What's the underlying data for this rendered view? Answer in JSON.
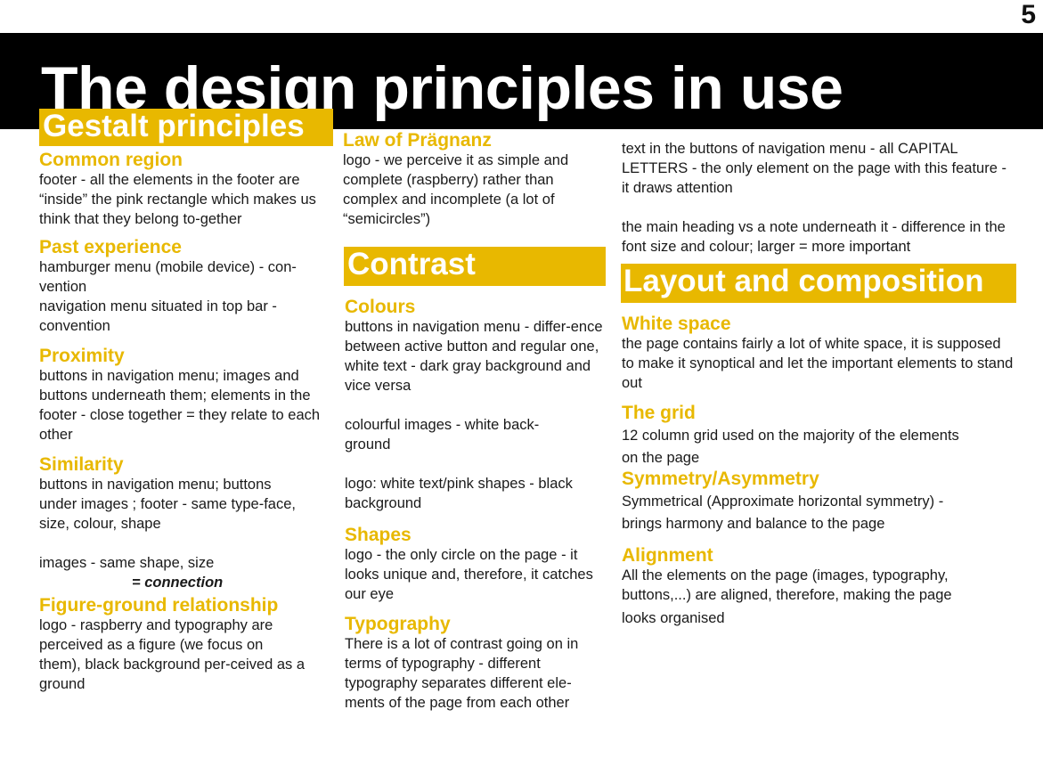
{
  "page_number": "5",
  "title": "The design principles in use",
  "gestalt": {
    "banner": "Gestalt principles",
    "common_region": {
      "heading": "Common region",
      "text": "footer - all the elements in the footer are “inside” the pink rectangle which makes us think that they belong to-gether"
    },
    "past_experience": {
      "heading": "Past experience",
      "line1": "hamburger menu (mobile device) - con-vention",
      "line2": "navigation menu situated in top bar - convention"
    },
    "proximity": {
      "heading": "Proximity",
      "text": "buttons in navigation menu; images and buttons underneath them; elements in the footer - close together = they relate to each other"
    },
    "similarity": {
      "heading": "Similarity",
      "text": "buttons in navigation menu; buttons under images ; footer - same type-face, size, colour, shape",
      "text2": "images - same shape, size",
      "connection": "= connection"
    },
    "figure_ground": {
      "heading": "Figure-ground relationship",
      "text": "logo - raspberry and typography are perceived as a figure (we focus on them), black background per-ceived as a ground"
    }
  },
  "middle": {
    "pragnanz": {
      "heading": "Law of Prägnanz",
      "text": "logo - we perceive it as simple and complete (raspberry) rather than complex and incomplete (a lot of “semicircles”)"
    },
    "contrast_banner": "Contrast",
    "colours": {
      "heading": "Colours",
      "text1": "buttons in navigation menu - differ-ence between active button and regular one, white text - dark gray background and vice versa",
      "text2": "colourful images - white back-ground",
      "text3": "logo: white text/pink shapes - black background"
    },
    "shapes": {
      "heading": "Shapes",
      "text": "logo - the only circle on the page - it looks unique and, therefore, it catches our eye"
    },
    "typography": {
      "heading": "Typography",
      "text": "There is a lot of contrast going on in terms of typography - different typography separates different ele-ments of the page from each other"
    }
  },
  "right": {
    "text1": "text in the buttons of navigation menu - all CAPITAL LETTERS  - the only element on the page with this feature - it draws attention",
    "text2": "the main heading vs a note underneath it - difference in the font size and colour; larger = more important",
    "layout_banner": "Layout and composition",
    "white_space": {
      "heading": "White space",
      "text": "the page contains fairly a lot of white space, it is supposed to make it synoptical and let the important elements to stand out"
    },
    "grid": {
      "heading": "The grid",
      "line1": "12 column grid used on the majority of the elements",
      "line2": "on the page"
    },
    "symmetry": {
      "heading": "Symmetry/Asymmetry",
      "line1": "Symmetrical (Approximate horizontal symmetry) -",
      "line2": "brings harmony and balance to the page"
    },
    "alignment": {
      "heading": "Alignment",
      "text": "All the elements on the page (images, typography, buttons,...) are aligned, therefore, making the page",
      "text2": "looks organised"
    }
  },
  "colors": {
    "accent": "#e8b800",
    "title_bar": "#000000",
    "text": "#1a1a1a"
  }
}
